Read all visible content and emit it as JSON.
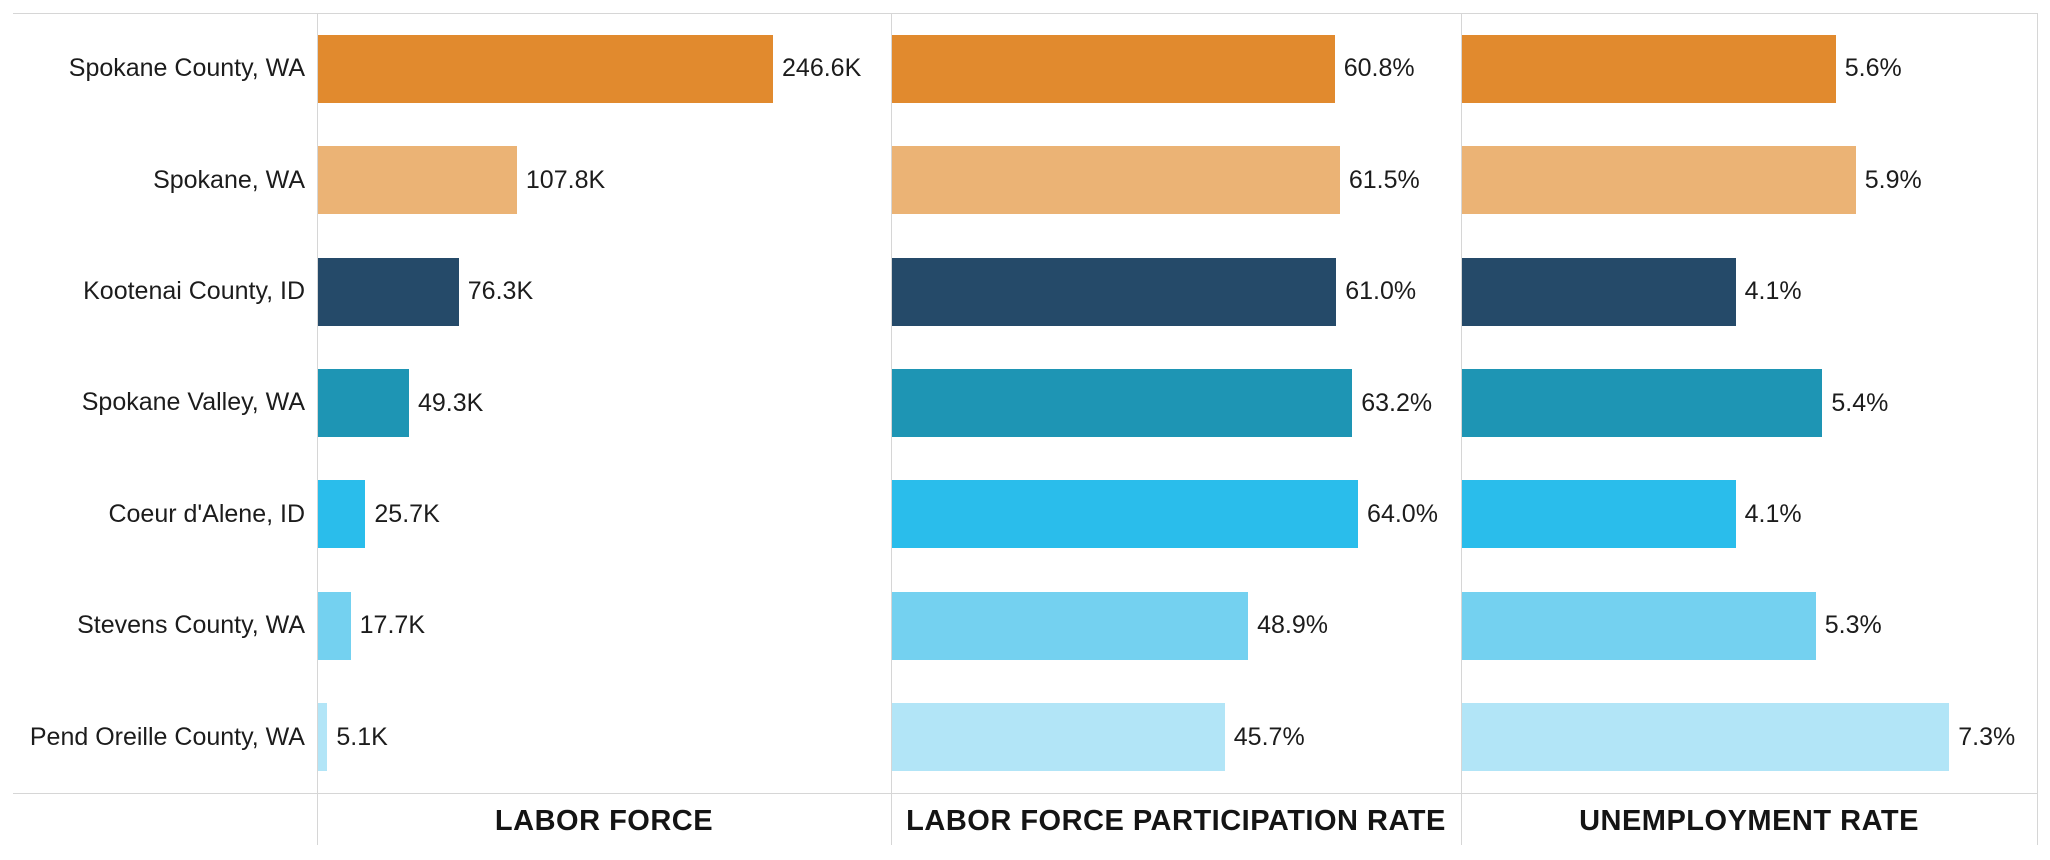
{
  "chart_data": {
    "type": "bar",
    "orientation": "horizontal",
    "grid": "panel borders only, no tick gridlines",
    "legend": "none",
    "categories": [
      "Spokane County, WA",
      "Spokane, WA",
      "Kootenai County, ID",
      "Spokane Valley, WA",
      "Coeur d'Alene, ID",
      "Stevens County, WA",
      "Pend Oreille County, WA"
    ],
    "bar_colors": [
      "#E18A2E",
      "#EBB375",
      "#254A69",
      "#1E95B4",
      "#2ABDEB",
      "#74D1F0",
      "#B2E5F7"
    ],
    "panels": [
      {
        "title": "LABOR FORCE",
        "unit": "K",
        "values": [
          246.6,
          107.8,
          76.3,
          49.3,
          25.7,
          17.7,
          5.1
        ],
        "value_labels": [
          "246.6K",
          "107.8K",
          "76.3K",
          "49.3K",
          "25.7K",
          "17.7K",
          "5.1K"
        ],
        "axis_min": 0,
        "axis_max": 310
      },
      {
        "title": "LABOR FORCE PARTICIPATION RATE",
        "unit": "%",
        "values": [
          60.8,
          61.5,
          61.0,
          63.2,
          64.0,
          48.9,
          45.7
        ],
        "value_labels": [
          "60.8%",
          "61.5%",
          "61.0%",
          "63.2%",
          "64.0%",
          "48.9%",
          "45.7%"
        ],
        "axis_min": 0,
        "axis_max": 78
      },
      {
        "title": "UNEMPLOYMENT RATE",
        "unit": "%",
        "values": [
          5.6,
          5.9,
          4.1,
          5.4,
          4.1,
          5.3,
          7.3
        ],
        "value_labels": [
          "5.6%",
          "5.9%",
          "4.1%",
          "5.4%",
          "4.1%",
          "5.3%",
          "7.3%"
        ],
        "axis_min": 0,
        "axis_max": 8.6
      }
    ],
    "colors": {
      "background": "#FFFFFF",
      "grid_line": "#D6D6D6",
      "label_text": "#1C1C1C",
      "title_text": "#141414"
    }
  }
}
